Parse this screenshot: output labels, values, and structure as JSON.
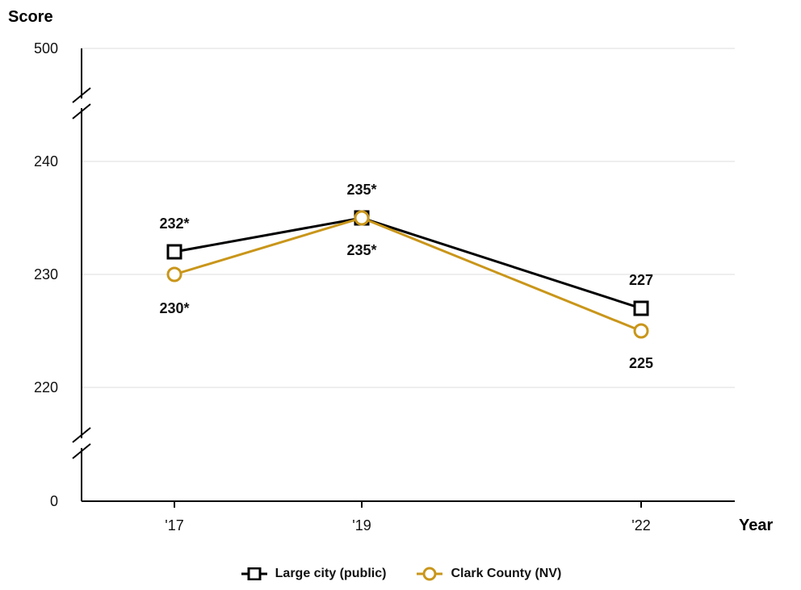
{
  "chart_data": {
    "type": "line",
    "ylabel": "Score",
    "xlabel": "Year",
    "categories": [
      "'17",
      "'19",
      "'22"
    ],
    "y_ticks": [
      "500",
      "240",
      "230",
      "220",
      "0"
    ],
    "y_break": true,
    "grid": true,
    "legend_position": "bottom",
    "series": [
      {
        "name": "Large city (public)",
        "color": "#000000",
        "marker": "square",
        "values": [
          232,
          235,
          227
        ],
        "labels": [
          "232*",
          "235*",
          "227"
        ]
      },
      {
        "name": "Clark County (NV)",
        "color": "#c9961a",
        "marker": "circle",
        "values": [
          230,
          235,
          225
        ],
        "labels": [
          "230*",
          "235*",
          "225"
        ]
      }
    ]
  }
}
